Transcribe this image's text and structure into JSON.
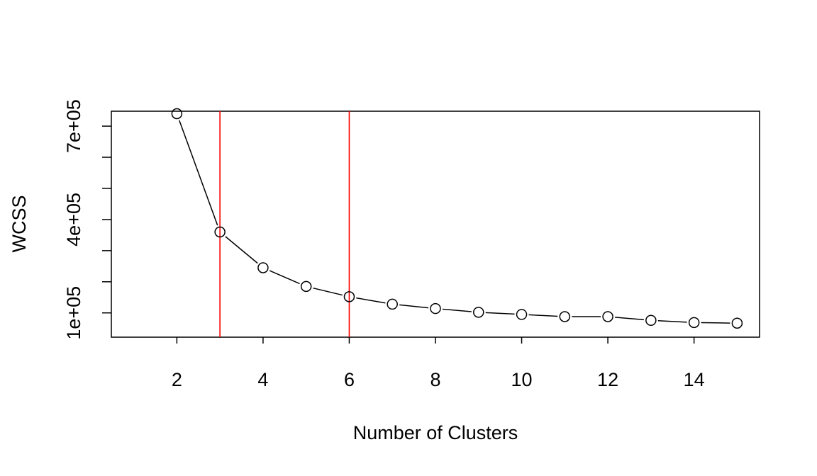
{
  "chart_data": {
    "type": "line",
    "title": "",
    "xlabel": "Number of Clusters",
    "ylabel": "WCSS",
    "x": [
      2,
      3,
      4,
      5,
      6,
      7,
      8,
      9,
      10,
      11,
      12,
      13,
      14,
      15
    ],
    "series": [
      {
        "values": [
          740000,
          360000,
          245000,
          185000,
          152000,
          128000,
          114000,
          102000,
          95000,
          88000,
          88000,
          76000,
          69000,
          67000
        ],
        "marker": "open-circle",
        "color": "#000000"
      }
    ],
    "vlines": [
      {
        "x": 3,
        "color": "#ff0000"
      },
      {
        "x": 6,
        "color": "#ff0000"
      }
    ],
    "xticks": [
      2,
      4,
      6,
      8,
      10,
      12,
      14
    ],
    "xtick_labels": [
      "2",
      "4",
      "6",
      "8",
      "10",
      "12",
      "14"
    ],
    "yticks": [
      100000,
      200000,
      300000,
      400000,
      500000,
      600000,
      700000
    ],
    "ytick_labels": [
      "1e+05",
      "",
      "",
      "4e+05",
      "",
      "",
      "7e+05"
    ],
    "xlim": [
      0.48,
      15.52
    ],
    "ylim": [
      22000,
      748000
    ],
    "grid": false,
    "legend": "none"
  }
}
